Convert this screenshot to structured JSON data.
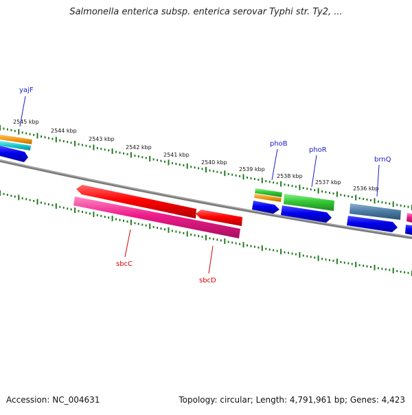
{
  "title": "Salmonella enterica subsp. enterica serovar Typhi str. Ty2, ...",
  "footer": {
    "accession": "Accession: NC_004631",
    "stats": "Topology: circular; Length: 4,791,961 bp; Genes: 4,423"
  },
  "scale_labels": [
    "2545 kbp",
    "2544 kbp",
    "2543 kbp",
    "2542 kbp",
    "2541 kbp",
    "2540 kbp",
    "2539 kbp",
    "2538 kbp",
    "2537 kbp",
    "2536 kbp"
  ],
  "gene_labels": {
    "top": [
      "yajF",
      "phoB",
      "phoR",
      "brnQ"
    ],
    "bottom": [
      "sbcC",
      "sbcD"
    ]
  },
  "colors": {
    "label_top": "#1a1acc",
    "label_bottom": "#d40000",
    "tick": "#1f7a1f",
    "backbone": "#808080"
  }
}
